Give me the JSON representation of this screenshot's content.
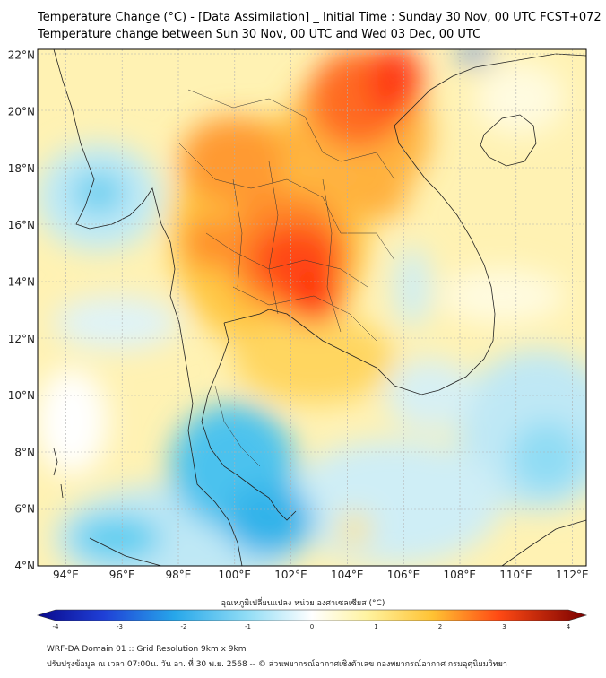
{
  "title_line1": "Temperature Change (°C) - [Data Assimilation] _ Initial Time : Sunday 30 Nov, 00 UTC FCST+072",
  "title_line2": "Temperature change between Sun 30 Nov, 00 UTC and Wed 03 Dec, 00 UTC",
  "map": {
    "lon_range": [
      93,
      112.5
    ],
    "lat_range": [
      4,
      22.2
    ],
    "lon_ticks": [
      "94°E",
      "96°E",
      "98°E",
      "100°E",
      "102°E",
      "104°E",
      "106°E",
      "108°E",
      "110°E",
      "112°E"
    ],
    "lat_ticks": [
      "22°N",
      "20°N",
      "18°N",
      "16°N",
      "14°N",
      "12°N",
      "10°N",
      "8°N",
      "6°N",
      "4°N"
    ]
  },
  "colorbar": {
    "title": "อุณหภูมิเปลี่ยนแปลง หน่วย องศาเซลเซียส (°C)",
    "ticks": [
      "-4",
      "-3",
      "-2",
      "-1",
      "0",
      "1",
      "2",
      "3",
      "4"
    ],
    "range": [
      -4,
      4
    ]
  },
  "footer_line1": "WRF-DA Domain 01 :: Grid Resolution 9km x 9km",
  "footer_line2": "ปรับปรุงข้อมูล ณ เวลา 07:00น. วัน อา. ที่ 30 พ.ย. 2568 -- © ส่วนพยากรณ์อากาศเชิงตัวเลข กองพยากรณ์อากาศ กรมอุตุนิยมวิทยา"
}
